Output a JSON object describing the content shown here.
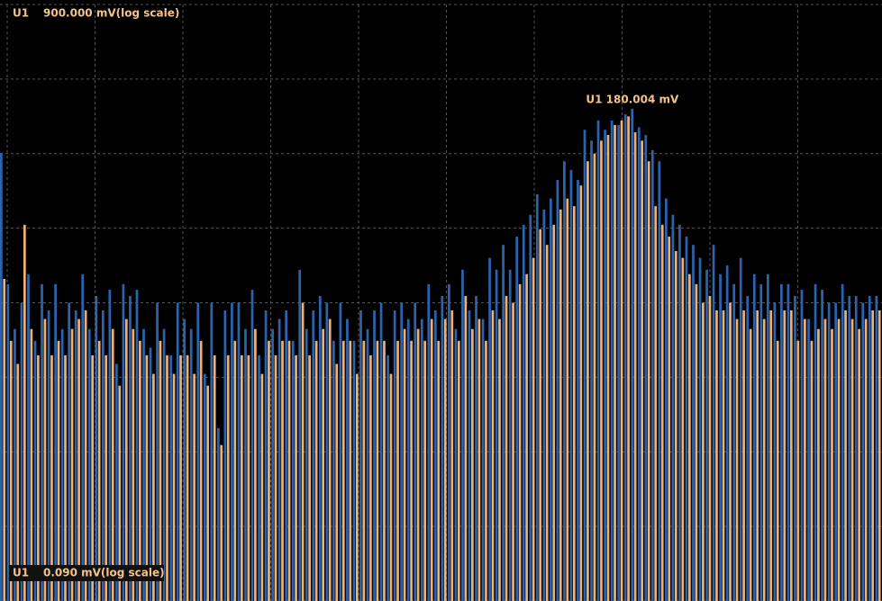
{
  "chart_data": {
    "type": "bar",
    "scale": "log",
    "grid": true,
    "channel": "U1",
    "top_label": "900.000 mV(log scale)",
    "bottom_label": "0.090 mV(log scale)",
    "annotation": "U1 180.004 mV",
    "ylim": [
      0.09,
      900
    ],
    "series": [
      {
        "color": "#2a64b0",
        "values": [
          91,
          12,
          6,
          9,
          14,
          5,
          12,
          8,
          12,
          6,
          9,
          8,
          14,
          6,
          10,
          8,
          11,
          3.5,
          12,
          10,
          11,
          6,
          4.5,
          9,
          6,
          4,
          9,
          7,
          6,
          9,
          3,
          9,
          1.3,
          8,
          9,
          9,
          6,
          11,
          4,
          8,
          6,
          7,
          8,
          5,
          15,
          6,
          8,
          10,
          9,
          5,
          9,
          7,
          5,
          8,
          6,
          8,
          9,
          4,
          8,
          9,
          7,
          9,
          7,
          12,
          8,
          10,
          12,
          6,
          15,
          8,
          10,
          7,
          18,
          15,
          22,
          15,
          25,
          30,
          35,
          48,
          38,
          45,
          60,
          80,
          70,
          60,
          130,
          110,
          150,
          130,
          150,
          140,
          165,
          180.004,
          135,
          120,
          95,
          80,
          45,
          35,
          30,
          25,
          22,
          18,
          15,
          22,
          14,
          16,
          12,
          18,
          10,
          14,
          12,
          14,
          9,
          12,
          12,
          10,
          11,
          7,
          12,
          11,
          9,
          9,
          12,
          10,
          10,
          9,
          10,
          10
        ]
      },
      {
        "color": "#f0b070",
        "values": [
          13,
          5,
          3.5,
          30,
          6,
          4,
          7,
          4,
          5,
          4,
          6,
          7,
          8,
          4,
          5,
          4,
          6,
          2.5,
          7,
          6,
          5,
          4,
          3,
          5,
          4,
          3,
          4,
          4,
          3,
          5,
          2.5,
          4,
          1,
          4,
          5,
          4,
          4,
          6,
          3,
          5,
          4,
          5,
          5,
          4,
          9,
          4,
          5,
          6,
          7,
          3.5,
          5,
          5,
          3,
          5,
          4,
          5,
          5,
          3,
          5,
          6,
          5,
          6,
          5,
          7,
          5,
          7,
          8,
          5,
          10,
          6,
          7,
          5,
          8,
          7,
          10,
          9,
          12,
          14,
          18,
          28,
          22,
          30,
          38,
          45,
          40,
          55,
          80,
          90,
          110,
          120,
          140,
          150,
          160,
          125,
          110,
          80,
          40,
          30,
          25,
          20,
          18,
          14,
          12,
          9,
          10,
          8,
          8,
          9,
          7,
          8,
          6,
          8,
          7,
          8,
          5,
          8,
          8,
          5,
          7,
          5,
          6,
          7,
          6,
          7,
          8,
          7,
          6,
          7,
          8,
          8
        ]
      }
    ]
  }
}
